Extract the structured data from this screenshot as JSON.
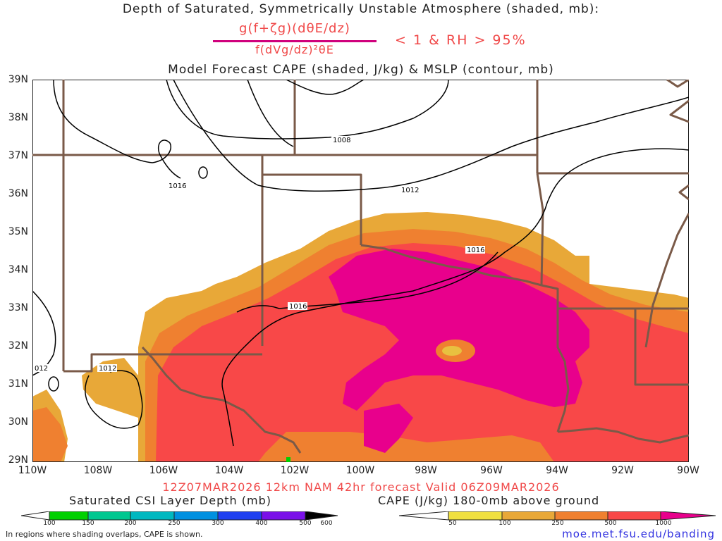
{
  "title": {
    "line1": "Depth of Saturated, Symmetrically Unstable Atmosphere (shaded, mb):",
    "numerator": "g(f+ζg)(dθE/dz)",
    "denominator": "f(dVg/dz)²θE",
    "condition": "< 1 & RH > 95%",
    "line3": "Model Forecast CAPE (shaded, J/kg) & MSLP (contour, mb)"
  },
  "axes": {
    "lat_labels": [
      "39N",
      "38N",
      "37N",
      "36N",
      "35N",
      "34N",
      "33N",
      "32N",
      "31N",
      "30N",
      "29N"
    ],
    "lon_labels": [
      "110W",
      "108W",
      "106W",
      "104W",
      "102W",
      "100W",
      "98W",
      "96W",
      "94W",
      "92W",
      "90W"
    ]
  },
  "contours": {
    "labels": [
      "1008",
      "1012",
      "1016",
      "1016",
      "1016",
      "1012",
      "012"
    ]
  },
  "valid_line": "12Z07MAR2026 12km NAM 42hr forecast Valid 06Z09MAR2026",
  "legend_csi": {
    "title": "Saturated CSI Layer Depth (mb)",
    "ticks": [
      "100",
      "150",
      "200",
      "250",
      "300",
      "400",
      "500",
      "600"
    ],
    "colors": [
      "#00d000",
      "#00c890",
      "#00b8c0",
      "#0090e0",
      "#2040f0",
      "#7a10e8",
      "#000000"
    ]
  },
  "legend_cape": {
    "title": "CAPE (J/kg) 180-0mb above ground",
    "ticks": [
      "50",
      "100",
      "250",
      "500",
      "1000"
    ],
    "colors": [
      "#f0e040",
      "#e8a838",
      "#ef8030",
      "#f84848",
      "#e8008c"
    ]
  },
  "footnote": "In regions where shading overlaps, CAPE is shown.",
  "url": "moe.met.fsu.edu/banding",
  "colors": {
    "state_border": "#7a5a48",
    "contour": "#000000",
    "title_red": "#f04848"
  }
}
